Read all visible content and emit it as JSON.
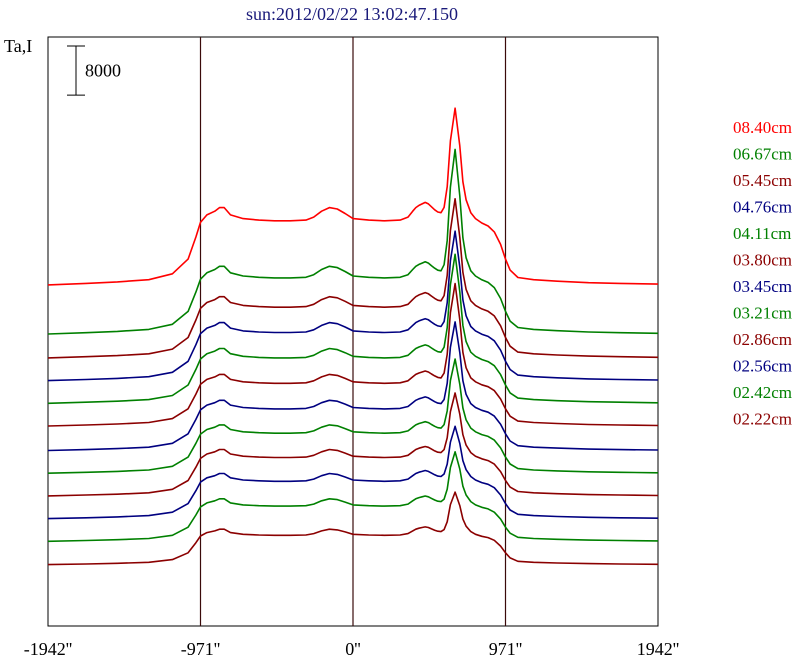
{
  "chart_data": {
    "type": "line",
    "title": "sun:2012/02/22 13:02:47.150",
    "ylabel": "Ta,I",
    "xlabel": "",
    "xlim": [
      -1942,
      1942
    ],
    "x_ticks": [
      {
        "value": -1942,
        "label": "-1942''"
      },
      {
        "value": -971,
        "label": "-971''"
      },
      {
        "value": 0,
        "label": "0''"
      },
      {
        "value": 971,
        "label": "971''"
      },
      {
        "value": 1942,
        "label": "1942''"
      }
    ],
    "vertical_lines": [
      -971,
      0,
      971
    ],
    "scale_bar": {
      "label": "8000",
      "value": 8000
    },
    "grid": false,
    "legend_position": "right",
    "colors": {
      "title": "#1a1a7a",
      "axes": "#000000",
      "vline": "#3a0a0a"
    },
    "profile": {
      "x": [
        -1942,
        -1700,
        -1500,
        -1300,
        -1150,
        -1050,
        -1000,
        -971,
        -930,
        -880,
        -850,
        -820,
        -780,
        -700,
        -600,
        -500,
        -400,
        -300,
        -250,
        -200,
        -150,
        -100,
        -50,
        0,
        100,
        200,
        300,
        350,
        380,
        400,
        420,
        440,
        460,
        480,
        500,
        520,
        540,
        560,
        580,
        600,
        620,
        650,
        680,
        700,
        720,
        750,
        780,
        820,
        860,
        900,
        940,
        971,
        1000,
        1050,
        1150,
        1300,
        1500,
        1700,
        1942
      ],
      "base": [
        0,
        200,
        400,
        700,
        1500,
        3500,
        6500,
        8500,
        9500,
        10000,
        10500,
        10500,
        9500,
        9000,
        8800,
        8700,
        8700,
        8800,
        9200,
        10000,
        10500,
        10300,
        9700,
        9000,
        8800,
        8700,
        8800,
        9200,
        10000,
        10500,
        10800,
        11000,
        11200,
        11000,
        10600,
        10200,
        9900,
        9800,
        9900,
        10200,
        10800,
        11500,
        12000,
        11500,
        10800,
        9800,
        9000,
        8400,
        8000,
        7200,
        5500,
        3500,
        2000,
        1000,
        700,
        500,
        300,
        200,
        100
      ],
      "peak": [
        0,
        0,
        0,
        0,
        0,
        0,
        0,
        0,
        0,
        0,
        0,
        0,
        0,
        0,
        0,
        0,
        0,
        0,
        0,
        0,
        0,
        0,
        0,
        0,
        0,
        0,
        0,
        0,
        0,
        0,
        0,
        0,
        0,
        0,
        0,
        0,
        0,
        0,
        0.05,
        0.25,
        0.7,
        1,
        0.55,
        0.2,
        0.06,
        0,
        0,
        0,
        0,
        0,
        0,
        0,
        0,
        0,
        0,
        0,
        0,
        0,
        0
      ]
    },
    "series": [
      {
        "name": "08.40cm",
        "color": "#ff0000",
        "offset": 55600,
        "scale": 1.2,
        "peak": 15000
      },
      {
        "name": "06.67cm",
        "color": "#008000",
        "offset": 47600,
        "scale": 1.05,
        "peak": 18000
      },
      {
        "name": "05.45cm",
        "color": "#8b0000",
        "offset": 43700,
        "scale": 0.95,
        "peak": 15000
      },
      {
        "name": "04.76cm",
        "color": "#000080",
        "offset": 40000,
        "scale": 0.9,
        "peak": 14000
      },
      {
        "name": "04.11cm",
        "color": "#008000",
        "offset": 36300,
        "scale": 0.85,
        "peak": 14500
      },
      {
        "name": "03.80cm",
        "color": "#8b0000",
        "offset": 32600,
        "scale": 0.8,
        "peak": 14000
      },
      {
        "name": "03.45cm",
        "color": "#000080",
        "offset": 28600,
        "scale": 0.78,
        "peak": 12000
      },
      {
        "name": "03.21cm",
        "color": "#008000",
        "offset": 24900,
        "scale": 0.75,
        "peak": 10000
      },
      {
        "name": "02.86cm",
        "color": "#8b0000",
        "offset": 21200,
        "scale": 0.72,
        "peak": 8500
      },
      {
        "name": "02.56cm",
        "color": "#000080",
        "offset": 17500,
        "scale": 0.7,
        "peak": 7000
      },
      {
        "name": "02.42cm",
        "color": "#008000",
        "offset": 13800,
        "scale": 0.66,
        "peak": 7000
      },
      {
        "name": "02.22cm",
        "color": "#8b0000",
        "offset": 10000,
        "scale": 0.55,
        "peak": 5500
      }
    ],
    "ylim": [
      0,
      96000
    ]
  }
}
